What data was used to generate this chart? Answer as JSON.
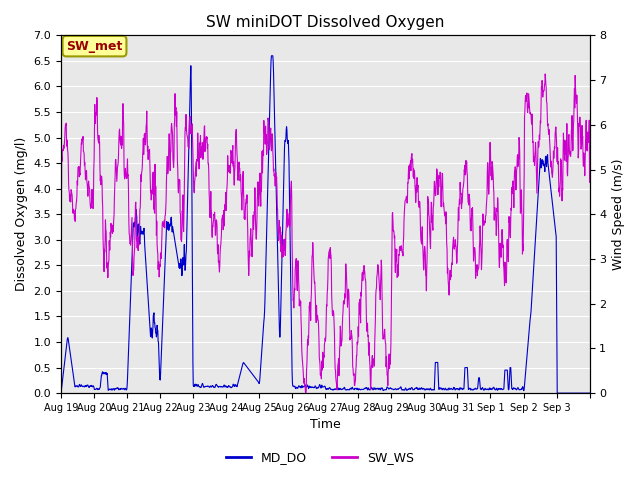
{
  "title": "SW miniDOT Dissolved Oxygen",
  "xlabel": "Time",
  "ylabel_left": "Dissolved Oxygen (mg/l)",
  "ylabel_right": "Wind Speed (m/s)",
  "ylim_left": [
    0.0,
    7.0
  ],
  "ylim_right": [
    0.0,
    8.0
  ],
  "yticks_left": [
    0.0,
    0.5,
    1.0,
    1.5,
    2.0,
    2.5,
    3.0,
    3.5,
    4.0,
    4.5,
    5.0,
    5.5,
    6.0,
    6.5,
    7.0
  ],
  "yticks_right": [
    0.0,
    1.0,
    2.0,
    3.0,
    4.0,
    5.0,
    6.0,
    7.0,
    8.0
  ],
  "xtick_positions": [
    0,
    1,
    2,
    3,
    4,
    5,
    6,
    7,
    8,
    9,
    10,
    11,
    12,
    13,
    14,
    15,
    16
  ],
  "xtick_labels": [
    "Aug 19",
    "Aug 20",
    "Aug 21",
    "Aug 22",
    "Aug 23",
    "Aug 24",
    "Aug 25",
    "Aug 26",
    "Aug 27",
    "Aug 28",
    "Aug 29",
    "Aug 30",
    "Aug 31",
    "Sep 1",
    "Sep 2",
    "Sep 3",
    ""
  ],
  "color_do": "#0000cc",
  "color_ws": "#cc00cc",
  "legend_box_label": "SW_met",
  "legend_box_facecolor": "#ffff99",
  "legend_box_edgecolor": "#999900",
  "legend_box_textcolor": "#990000",
  "bg_color": "#e8e8e8",
  "fig_bg": "#ffffff",
  "n_days": 16
}
